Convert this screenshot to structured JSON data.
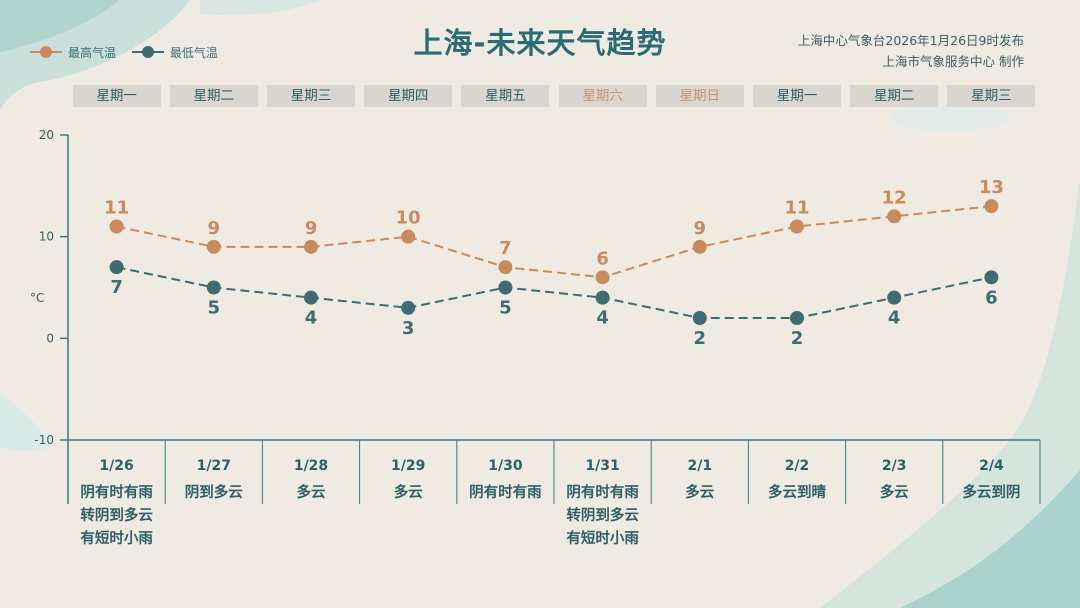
{
  "header": {
    "title": "上海-未来天气趋势",
    "issuer_line1": "上海中心气象台2026年1月26日9时发布",
    "issuer_line2": "上海市气象服务中心  制作"
  },
  "legend": {
    "high_label": "最高气温",
    "low_label": "最低气温"
  },
  "weekdays": [
    "星期一",
    "星期二",
    "星期三",
    "星期四",
    "星期五",
    "星期六",
    "星期日",
    "星期一",
    "星期二",
    "星期三"
  ],
  "weekend_indices": [
    5,
    6
  ],
  "colors": {
    "high": "#c98a5e",
    "low": "#3f6b73",
    "axis": "#3c7a80",
    "accent_title": "#2d6b74"
  },
  "chart_data": {
    "type": "line",
    "x": [
      "1/26",
      "1/27",
      "1/28",
      "1/29",
      "1/30",
      "1/31",
      "2/1",
      "2/2",
      "2/3",
      "2/4"
    ],
    "series": [
      {
        "name": "最高气温",
        "values": [
          11,
          9,
          9,
          10,
          7,
          6,
          9,
          11,
          12,
          13
        ]
      },
      {
        "name": "最低气温",
        "values": [
          7,
          5,
          4,
          3,
          5,
          4,
          2,
          2,
          4,
          6
        ]
      }
    ],
    "ylabel": "°C",
    "ylim": [
      -10,
      20
    ],
    "yticks": [
      "20",
      "10",
      "0",
      "-10"
    ],
    "ytick_values": [
      20,
      10,
      0,
      -10
    ],
    "weather": [
      [
        "阴有时有雨",
        "转阴到多云",
        "有短时小雨"
      ],
      [
        "阴到多云"
      ],
      [
        "多云"
      ],
      [
        "多云"
      ],
      [
        "阴有时有雨"
      ],
      [
        "阴有时有雨",
        "转阴到多云",
        "有短时小雨"
      ],
      [
        "多云"
      ],
      [
        "多云到晴"
      ],
      [
        "多云"
      ],
      [
        "多云到阴"
      ]
    ],
    "grid": false
  }
}
